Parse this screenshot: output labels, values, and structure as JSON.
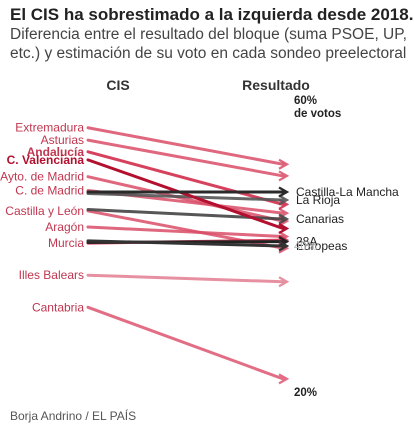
{
  "title": "El CIS ha sobrestimado a la izquierda desde 2018.",
  "subtitle": "Diferencia entre el resultado del bloque (suma PSOE, UP, etc.) y estimación de su voto en cada sondeo preelectoral",
  "source": "Borja Andrino / EL PAÍS",
  "chart_data": {
    "type": "slope",
    "left_column_label": "CIS",
    "right_column_label": "Resultado",
    "y_axis_ticks": [
      {
        "value": 60,
        "label": "60%",
        "sublabel": "de votos",
        "color": "#222222"
      },
      {
        "value": 40,
        "label": "40%",
        "color": "#bbbbbb"
      },
      {
        "value": 20,
        "label": "20%",
        "color": "#222222"
      }
    ],
    "ylim": [
      20,
      60
    ],
    "series": [
      {
        "name": "Extremadura",
        "cis": 56.2,
        "result": 51.2,
        "color": "#d94c67",
        "opacity": 0.85,
        "label_side": "left",
        "label_color": "#c1364f",
        "label_bold": false
      },
      {
        "name": "Asturias",
        "cis": 54.5,
        "result": 49.6,
        "color": "#d94c67",
        "opacity": 0.85,
        "label_side": "left",
        "label_color": "#c1364f",
        "label_bold": false
      },
      {
        "name": "Andalucía",
        "cis": 52.9,
        "result": 45.7,
        "color": "#d22d4b",
        "opacity": 0.9,
        "label_side": "left",
        "label_color": "#c1364f",
        "label_bold": true
      },
      {
        "name": "C. Valenciana",
        "cis": 51.8,
        "result": 42.4,
        "color": "#b30f2e",
        "opacity": 1.0,
        "label_side": "left",
        "label_color": "#b30f2e",
        "label_bold": true
      },
      {
        "name": "Ayto. de Madrid",
        "cis": 49.5,
        "result": 43.4,
        "color": "#d94c67",
        "opacity": 0.85,
        "label_side": "left",
        "label_color": "#c1364f",
        "label_bold": false
      },
      {
        "name": "C. de Madrid",
        "cis": 47.6,
        "result": 44.5,
        "color": "#d94c67",
        "opacity": 0.85,
        "label_side": "left",
        "label_color": "#c1364f",
        "label_bold": false
      },
      {
        "name": "Castilla y León",
        "cis": 44.8,
        "result": 39.7,
        "color": "#d94c67",
        "opacity": 0.85,
        "label_side": "left",
        "label_color": "#c1364f",
        "label_bold": false
      },
      {
        "name": "Aragón",
        "cis": 42.6,
        "result": 41.3,
        "color": "#d94c67",
        "opacity": 0.85,
        "label_side": "left",
        "label_color": "#c1364f",
        "label_bold": false
      },
      {
        "name": "Murcia",
        "cis": 40.4,
        "result": 40.8,
        "color": "#d22d4b",
        "opacity": 0.9,
        "label_side": "left",
        "label_color": "#c1364f",
        "label_bold": false
      },
      {
        "name": "Illes Balears",
        "cis": 36.0,
        "result": 35.1,
        "color": "#e58a9c",
        "opacity": 0.95,
        "label_side": "left",
        "label_color": "#c1364f",
        "label_bold": false
      },
      {
        "name": "Cantabria",
        "cis": 31.6,
        "result": 21.8,
        "color": "#e0667f",
        "opacity": 0.95,
        "label_side": "left",
        "label_color": "#c1364f",
        "label_bold": false
      },
      {
        "name": "Castilla-La Mancha",
        "cis": 47.4,
        "result": 47.4,
        "color": "#2a2a2a",
        "opacity": 1.0,
        "label_side": "right",
        "label_color": "#222222",
        "label_bold": false
      },
      {
        "name": "La Rioja",
        "cis": 47.2,
        "result": 46.3,
        "color": "#555555",
        "opacity": 0.9,
        "label_side": "right",
        "label_color": "#222222",
        "label_bold": false
      },
      {
        "name": "Canarias",
        "cis": 45.0,
        "result": 43.7,
        "color": "#444444",
        "opacity": 0.9,
        "label_side": "right",
        "label_color": "#222222",
        "label_bold": false
      },
      {
        "name": "28A",
        "cis": 40.5,
        "result": 40.6,
        "color": "#222222",
        "opacity": 1.0,
        "label_side": "right",
        "label_color": "#222222",
        "label_bold": false
      },
      {
        "name": "Europeas",
        "cis": 40.7,
        "result": 40.0,
        "color": "#333333",
        "opacity": 1.0,
        "label_side": "right",
        "label_color": "#222222",
        "label_bold": false
      }
    ]
  }
}
